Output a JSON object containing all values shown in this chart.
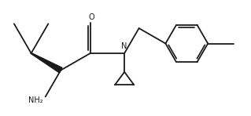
{
  "bg_color": "#ffffff",
  "line_color": "#1a1a1a",
  "line_width": 1.3,
  "fig_width": 3.19,
  "fig_height": 1.48,
  "nh2_label": "NH₂",
  "n_label": "N",
  "o_label": "O"
}
